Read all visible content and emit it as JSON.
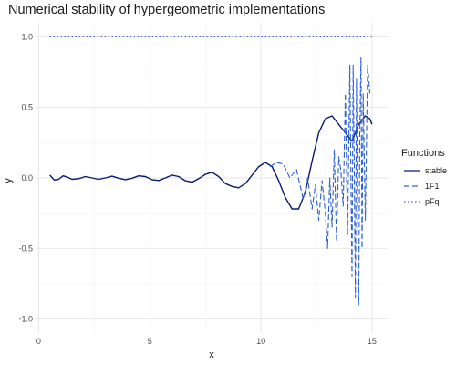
{
  "chart_data": {
    "type": "line",
    "title": "Numerical stability of hypergeometric implementations",
    "xlabel": "x",
    "ylabel": "y",
    "xlim": [
      -0.1,
      15.7
    ],
    "ylim": [
      -1.1,
      1.1
    ],
    "xticks": [
      0,
      5,
      10,
      15
    ],
    "xtick_labels": [
      "0",
      "5",
      "10",
      "15"
    ],
    "yticks": [
      -1.0,
      -0.5,
      0.0,
      0.5,
      1.0
    ],
    "ytick_labels": [
      "-1.0",
      "-0.5",
      "0.0",
      "0.5",
      "1.0"
    ],
    "grid": true,
    "legend": {
      "title": "Functions",
      "position": "right"
    },
    "series": [
      {
        "name": "stable",
        "color": "#0b1a6e",
        "dash": "solid",
        "x": [
          0.5,
          0.7,
          0.9,
          1.1,
          1.3,
          1.5,
          1.8,
          2.1,
          2.4,
          2.7,
          3.0,
          3.3,
          3.6,
          3.9,
          4.2,
          4.5,
          4.8,
          5.1,
          5.4,
          5.7,
          6.0,
          6.3,
          6.6,
          6.9,
          7.2,
          7.5,
          7.8,
          8.1,
          8.4,
          8.7,
          9.0,
          9.3,
          9.6,
          9.9,
          10.2,
          10.5,
          10.8,
          11.1,
          11.4,
          11.7,
          12.0,
          12.3,
          12.6,
          12.9,
          13.2,
          13.5,
          13.8,
          14.1,
          14.4,
          14.7,
          14.9,
          15.0
        ],
        "y": [
          0.02,
          -0.015,
          -0.01,
          0.015,
          0.005,
          -0.01,
          -0.005,
          0.01,
          0.0,
          -0.01,
          0.0,
          0.012,
          -0.002,
          -0.012,
          -0.002,
          0.015,
          0.01,
          -0.012,
          -0.018,
          0.0,
          0.02,
          0.01,
          -0.02,
          -0.03,
          -0.005,
          0.025,
          0.04,
          0.01,
          -0.04,
          -0.06,
          -0.07,
          -0.04,
          0.02,
          0.08,
          0.11,
          0.08,
          -0.02,
          -0.14,
          -0.22,
          -0.22,
          -0.1,
          0.12,
          0.32,
          0.42,
          0.44,
          0.38,
          0.32,
          0.26,
          0.38,
          0.44,
          0.42,
          0.38
        ]
      },
      {
        "name": "1F1",
        "color": "#2b5fd9",
        "dash": "dashed",
        "x": [
          10.4,
          10.7,
          11.0,
          11.3,
          11.6,
          11.9,
          12.1,
          12.3,
          12.45,
          12.6,
          12.75,
          12.9,
          13.0,
          13.1,
          13.2,
          13.3,
          13.4,
          13.5,
          13.6,
          13.7,
          13.8,
          13.9,
          14.0,
          14.05,
          14.1,
          14.15,
          14.2,
          14.25,
          14.3,
          14.35,
          14.4,
          14.45,
          14.5,
          14.55,
          14.6,
          14.7,
          14.8,
          14.9
        ],
        "y": [
          0.08,
          0.11,
          0.1,
          0.0,
          0.06,
          -0.15,
          0.0,
          -0.22,
          -0.05,
          -0.3,
          -0.02,
          -0.25,
          -0.5,
          0.0,
          -0.35,
          0.2,
          -0.45,
          0.15,
          0.05,
          -0.2,
          0.6,
          -0.4,
          0.8,
          0.0,
          -0.7,
          0.8,
          0.1,
          -0.85,
          0.7,
          -0.2,
          -0.9,
          0.3,
          0.85,
          -0.5,
          0.6,
          -0.3,
          0.8,
          0.6
        ]
      },
      {
        "name": "pFq",
        "color": "#4a5fd6",
        "dash": "dotted",
        "x": [
          0.5,
          15.0
        ],
        "y": [
          1.0,
          1.0
        ]
      }
    ]
  }
}
